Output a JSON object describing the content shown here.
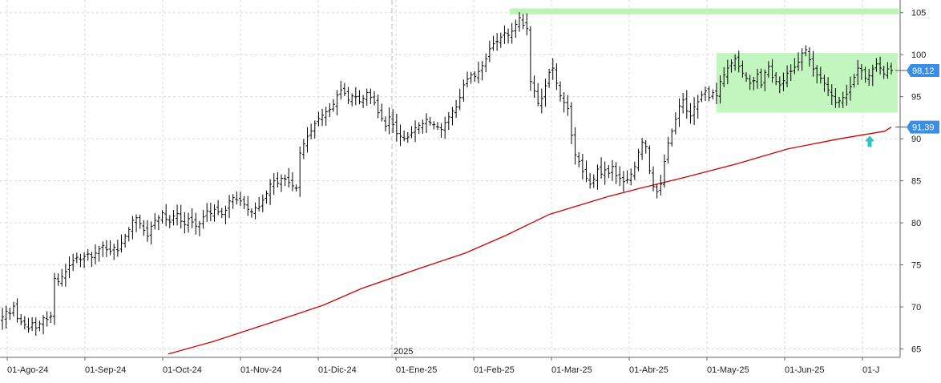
{
  "chart_data": {
    "type": "ohlc",
    "title": "",
    "xlabel": "",
    "ylabel": "",
    "ylim": [
      64,
      106.5
    ],
    "y_ticks": [
      65,
      70,
      75,
      80,
      85,
      90,
      95,
      100,
      105
    ],
    "y_tick_labels": [
      "65",
      "70",
      "75",
      "80",
      "85",
      "90",
      "95",
      "100",
      "105"
    ],
    "x_labels": [
      "01-Ago-24",
      "01-Sep-24",
      "01-Oct-24",
      "01-Nov-24",
      "01-Dic-24",
      "01-Ene-25",
      "01-Feb-25",
      "01-Mar-25",
      "01-Abr-25",
      "01-May-25",
      "01-Jun-25",
      "01-J"
    ],
    "year_marker": "2025",
    "grid": true,
    "price_series": {
      "name": "",
      "color": "#000000",
      "closes": [
        68.8,
        69.5,
        69.2,
        70.1,
        68.6,
        68.2,
        67.9,
        67.4,
        68.1,
        67.5,
        68.0,
        68.7,
        68.5,
        68.9,
        73.4,
        73.0,
        73.6,
        74.2,
        74.9,
        75.5,
        75.9,
        75.6,
        76.0,
        76.3,
        75.9,
        76.4,
        76.9,
        77.3,
        76.8,
        76.6,
        77.1,
        76.7,
        77.6,
        78.4,
        79.2,
        80.3,
        80.6,
        79.9,
        79.1,
        78.4,
        79.6,
        80.3,
        80.6,
        81.2,
        80.4,
        80.1,
        80.8,
        81.1,
        80.2,
        79.8,
        80.5,
        80.1,
        79.6,
        79.9,
        80.7,
        81.4,
        81.1,
        81.6,
        81.3,
        81.0,
        81.5,
        82.6,
        83.0,
        82.7,
        82.6,
        82.2,
        81.6,
        81.3,
        81.8,
        81.9,
        82.7,
        83.5,
        84.6,
        85.0,
        84.7,
        85.3,
        85.2,
        84.8,
        84.4,
        84.1,
        88.3,
        89.4,
        90.3,
        90.9,
        91.8,
        92.4,
        92.8,
        93.2,
        93.5,
        94.1,
        95.2,
        95.8,
        95.4,
        94.6,
        95.1,
        95.0,
        94.4,
        94.8,
        95.5,
        94.9,
        94.3,
        93.1,
        92.4,
        91.5,
        92.6,
        91.7,
        90.6,
        90.3,
        90.0,
        90.2,
        90.7,
        91.3,
        91.6,
        91.8,
        92.3,
        91.9,
        91.7,
        91.4,
        91.1,
        91.9,
        92.6,
        93.3,
        93.8,
        94.9,
        96.4,
        97.1,
        97.6,
        97.4,
        98.0,
        98.7,
        99.5,
        100.7,
        101.3,
        101.6,
        102.1,
        102.6,
        102.3,
        102.8,
        103.6,
        104.4,
        103.5,
        103.1,
        96.8,
        95.7,
        94.2,
        94.8,
        96.3,
        97.9,
        98.4,
        96.6,
        95.1,
        94.3,
        93.6,
        90.4,
        88.1,
        87.3,
        86.1,
        85.3,
        84.6,
        85.2,
        86.4,
        85.8,
        86.3,
        85.9,
        86.7,
        85.6,
        85.3,
        84.9,
        85.1,
        85.8,
        86.7,
        88.4,
        89.6,
        89.1,
        86.2,
        84.3,
        83.7,
        84.6,
        87.3,
        89.5,
        90.9,
        92.3,
        93.9,
        94.6,
        93.3,
        92.7,
        93.8,
        94.4,
        95.2,
        95.7,
        94.9,
        95.5,
        95.1,
        96.8,
        97.6,
        98.4,
        99.0,
        99.5,
        98.6,
        97.8,
        97.2,
        96.6,
        96.9,
        97.7,
        96.4,
        97.9,
        98.6,
        97.3,
        96.8,
        96.4,
        96.9,
        97.8,
        98.0,
        98.5,
        99.1,
        100.2,
        100.6,
        99.4,
        98.3,
        97.6,
        97.2,
        96.6,
        95.8,
        95.1,
        94.3,
        94.5,
        94.9,
        95.3,
        96.2,
        97.3,
        98.4,
        98.1,
        97.2,
        97.5,
        98.3,
        98.9,
        98.4,
        97.7,
        98.3,
        98.12
      ]
    },
    "moving_average": {
      "name": "",
      "color": "#cc0000",
      "points": [
        [
          0.1795,
          64.4
        ],
        [
          0.2393,
          65.9
        ],
        [
          0.3248,
          68.4
        ],
        [
          0.3846,
          70.2
        ],
        [
          0.4359,
          72.2
        ],
        [
          0.5128,
          74.6
        ],
        [
          0.5726,
          76.4
        ],
        [
          0.6239,
          78.4
        ],
        [
          0.6838,
          81.0
        ],
        [
          0.7607,
          83.1
        ],
        [
          0.8034,
          84.1
        ],
        [
          0.8632,
          85.4
        ],
        [
          0.9316,
          87.0
        ],
        [
          1.0,
          88.8
        ],
        [
          1.0684,
          90.0
        ],
        [
          1.1282,
          90.9
        ],
        [
          1.1368,
          91.39
        ]
      ]
    },
    "resistance_band": {
      "low": 104.8,
      "high": 105.5,
      "color": "#b9f5b4"
    },
    "range_box": {
      "low": 93.1,
      "high": 100.2,
      "color": "#c3f5bf"
    },
    "arrow": {
      "direction": "up",
      "color": "#2ec4c4"
    },
    "last_price_badge": {
      "label": "98,12",
      "value": 98.12,
      "color": "#3a8ee6"
    },
    "ma_badge": {
      "label": "91,39",
      "value": 91.39,
      "color": "#3a8ee6"
    }
  }
}
